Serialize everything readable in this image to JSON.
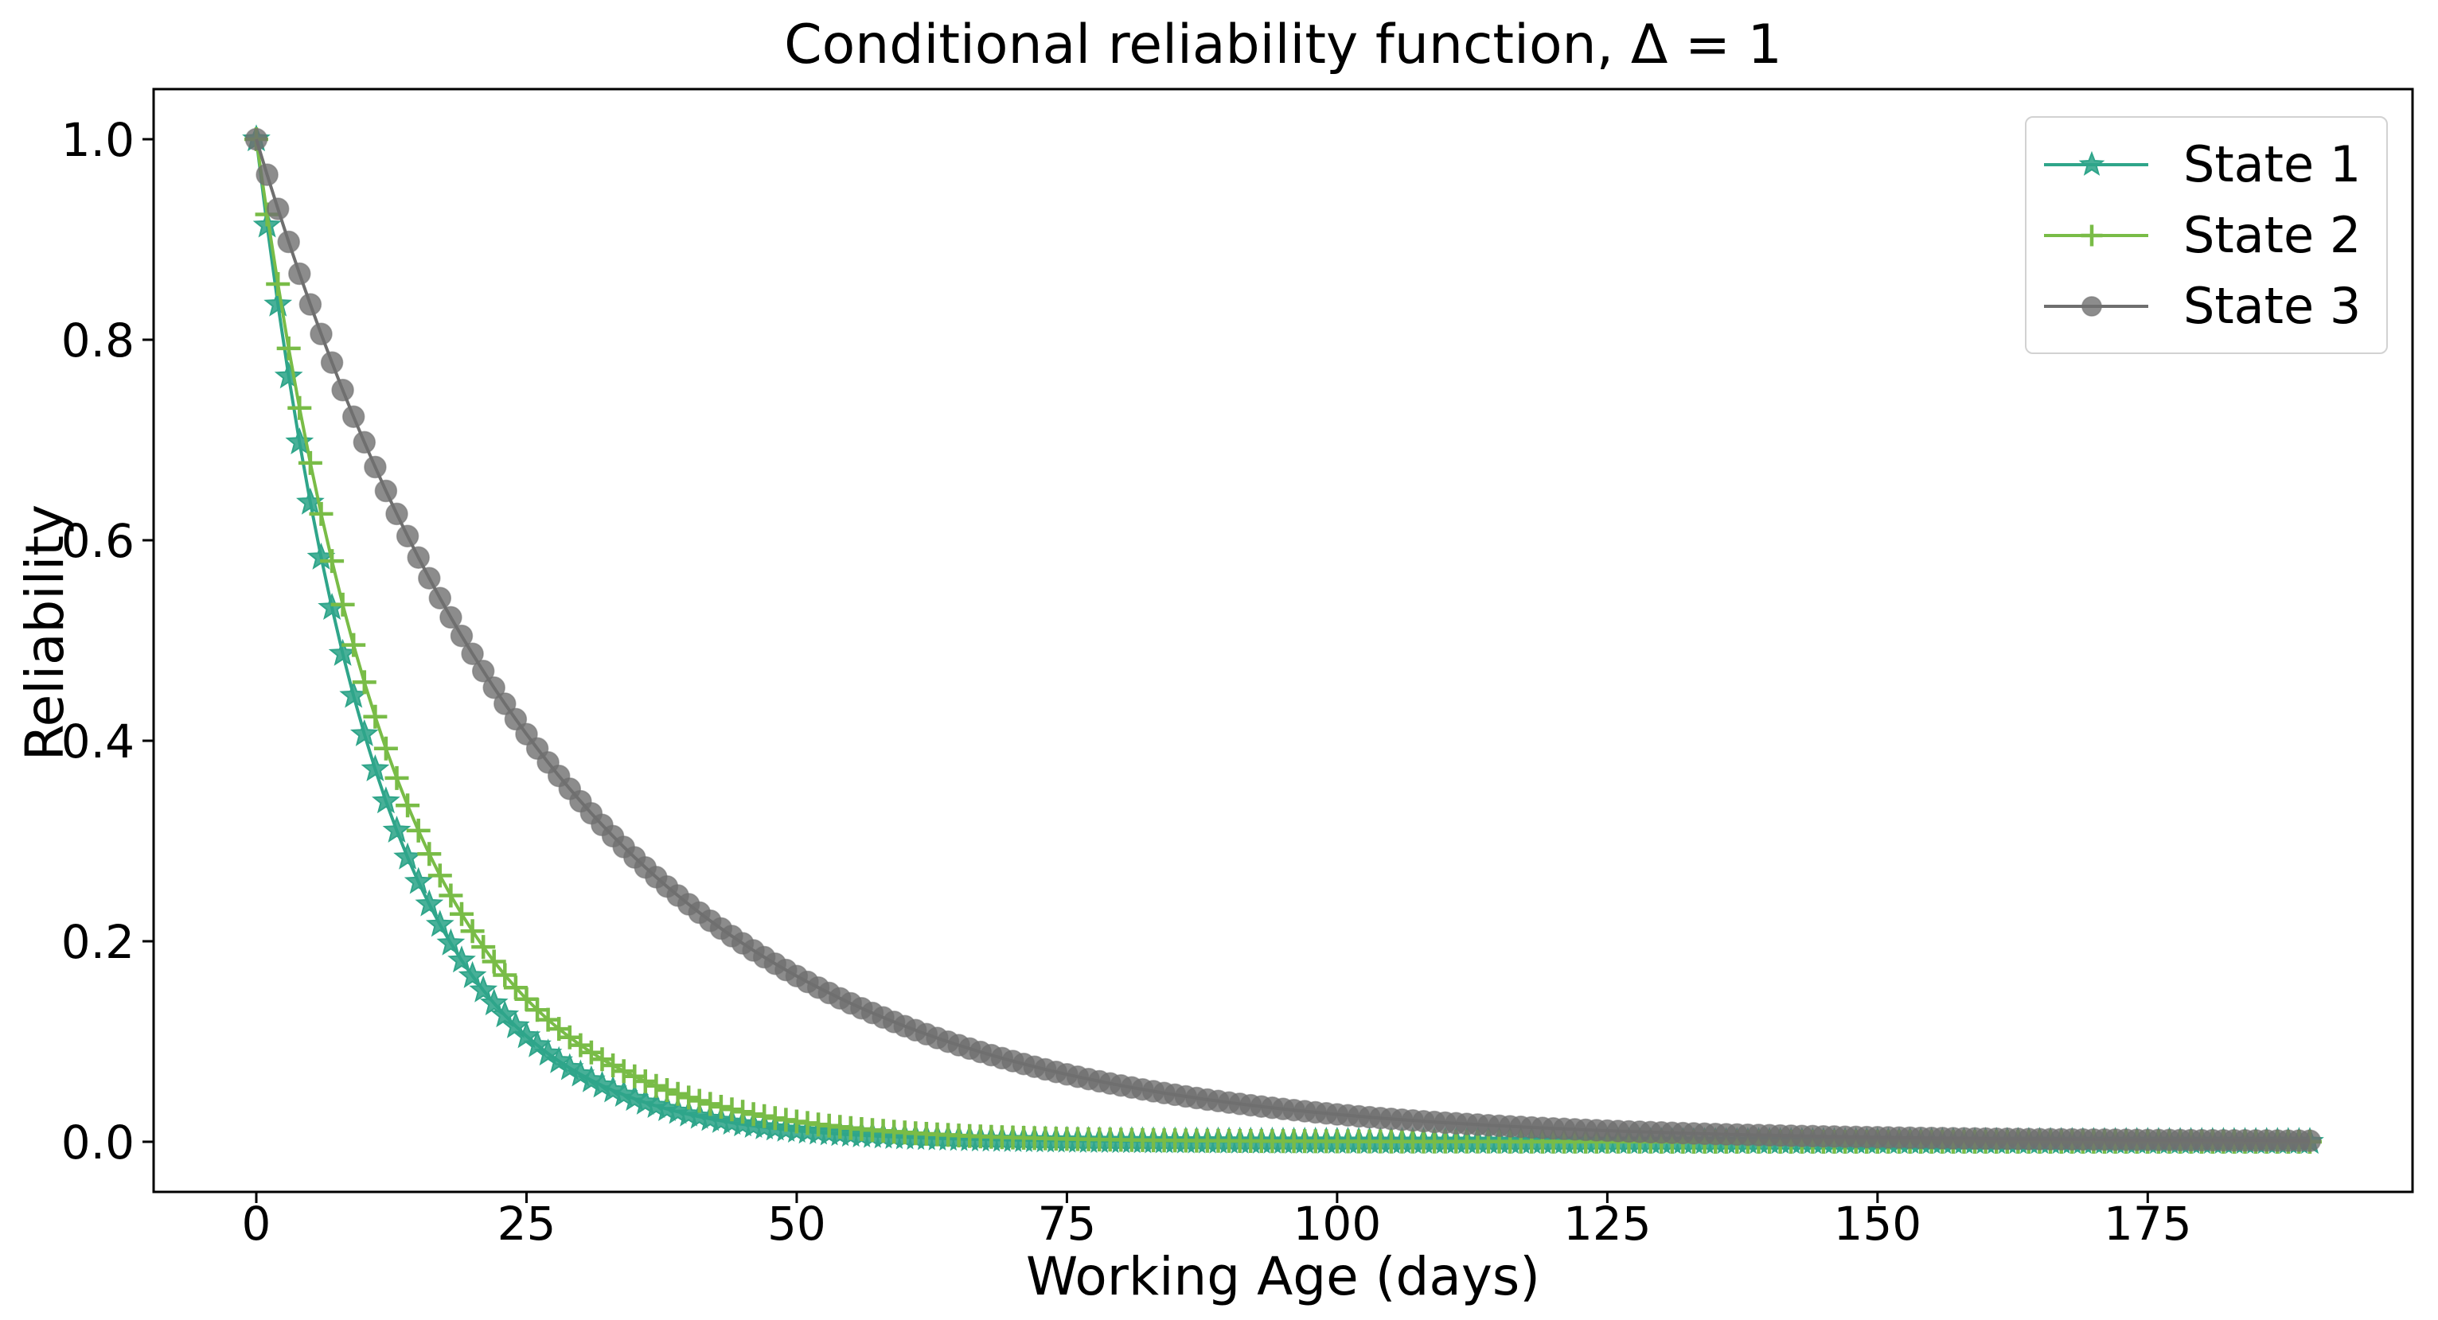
{
  "figure": {
    "background": "#ffffff",
    "axis_color": "#000000",
    "text_color": "#000000"
  },
  "chart_data": {
    "type": "line",
    "title": "Conditional reliability function, Δ = 1",
    "xlabel": "Working Age (days)",
    "ylabel": "Reliability",
    "xlim": [
      -9.5,
      199.5
    ],
    "ylim": [
      -0.05,
      1.05
    ],
    "x_ticks": [
      0,
      25,
      50,
      75,
      100,
      125,
      150,
      175
    ],
    "x_tick_labels": [
      "0",
      "25",
      "50",
      "75",
      "100",
      "125",
      "150",
      "175"
    ],
    "y_ticks": [
      0.0,
      0.2,
      0.4,
      0.6,
      0.8,
      1.0
    ],
    "y_tick_labels": [
      "0.0",
      "0.2",
      "0.4",
      "0.6",
      "0.8",
      "1.0"
    ],
    "grid": false,
    "x_range_days": [
      0,
      190
    ],
    "marker_interval_days": 1,
    "legend": {
      "position": "upper right",
      "border_color": "#d2d2d2",
      "background": "#ffffff"
    },
    "series": [
      {
        "name": "State 1",
        "marker": "star",
        "color": "#2fa58a",
        "marker_opacity": 0.88,
        "line_width": 4,
        "model": {
          "type": "exponential_decay",
          "formula": "R(t) = exp(-rate*t)",
          "rate": 0.09,
          "x_start": 0,
          "x_end": 190,
          "x_step": 1
        },
        "sample_points": [
          [
            0,
            1.0
          ],
          [
            10,
            0.4066
          ],
          [
            20,
            0.1653
          ],
          [
            30,
            0.0672
          ],
          [
            40,
            0.0273
          ],
          [
            50,
            0.0111
          ],
          [
            60,
            0.0045
          ],
          [
            70,
            0.0018
          ],
          [
            80,
            0.0007
          ],
          [
            90,
            0.0003
          ],
          [
            100,
            0.0001
          ],
          [
            110,
            0.0001
          ],
          [
            120,
            0.0
          ],
          [
            130,
            0.0
          ],
          [
            140,
            0.0
          ],
          [
            150,
            0.0
          ],
          [
            160,
            0.0
          ],
          [
            170,
            0.0
          ],
          [
            180,
            0.0
          ],
          [
            190,
            0.0
          ]
        ]
      },
      {
        "name": "State 2",
        "marker": "plus",
        "color": "#79bc47",
        "marker_opacity": 1.0,
        "line_width": 4,
        "model": {
          "type": "exponential_decay",
          "formula": "R(t) = exp(-rate*t)",
          "rate": 0.078,
          "x_start": 0,
          "x_end": 190,
          "x_step": 1
        },
        "sample_points": [
          [
            0,
            1.0
          ],
          [
            10,
            0.4584
          ],
          [
            20,
            0.2101
          ],
          [
            30,
            0.0963
          ],
          [
            40,
            0.0442
          ],
          [
            50,
            0.0202
          ],
          [
            60,
            0.0093
          ],
          [
            70,
            0.0043
          ],
          [
            80,
            0.002
          ],
          [
            90,
            0.0009
          ],
          [
            100,
            0.0004
          ],
          [
            110,
            0.0002
          ],
          [
            120,
            0.0001
          ],
          [
            130,
            0.0
          ],
          [
            140,
            0.0
          ],
          [
            150,
            0.0
          ],
          [
            160,
            0.0
          ],
          [
            170,
            0.0
          ],
          [
            180,
            0.0
          ],
          [
            190,
            0.0
          ]
        ]
      },
      {
        "name": "State 3",
        "marker": "circle",
        "color": "#6f6f6f",
        "marker_opacity": 0.8,
        "line_width": 4,
        "model": {
          "type": "exponential_decay",
          "formula": "R(t) = exp(-rate*t)",
          "rate": 0.036,
          "x_start": 0,
          "x_end": 190,
          "x_step": 1
        },
        "sample_points": [
          [
            0,
            1.0
          ],
          [
            10,
            0.6977
          ],
          [
            20,
            0.4868
          ],
          [
            30,
            0.3396
          ],
          [
            40,
            0.2369
          ],
          [
            50,
            0.1653
          ],
          [
            60,
            0.1153
          ],
          [
            70,
            0.0805
          ],
          [
            80,
            0.0561
          ],
          [
            90,
            0.0392
          ],
          [
            100,
            0.0273
          ],
          [
            110,
            0.0191
          ],
          [
            120,
            0.0133
          ],
          [
            130,
            0.0093
          ],
          [
            140,
            0.0065
          ],
          [
            150,
            0.0045
          ],
          [
            160,
            0.0032
          ],
          [
            170,
            0.0022
          ],
          [
            180,
            0.0015
          ],
          [
            190,
            0.0011
          ]
        ]
      }
    ]
  }
}
